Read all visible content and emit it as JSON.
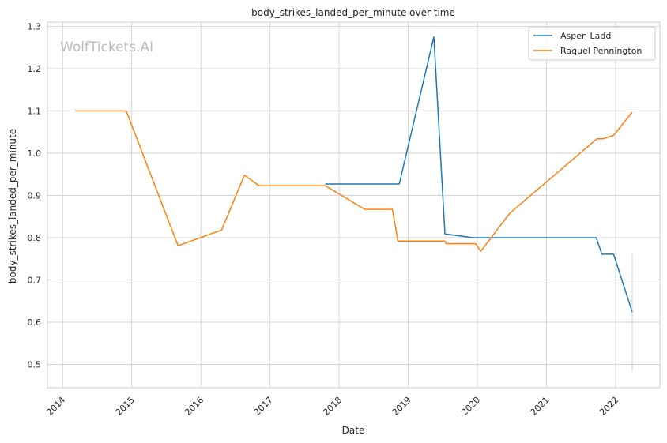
{
  "watermark": "WolfTickets.AI",
  "chart_data": {
    "type": "line",
    "title": "body_strikes_landed_per_minute over time",
    "xlabel": "Date",
    "ylabel": "body_strikes_landed_per_minute",
    "xlim": [
      2013.78,
      2022.64
    ],
    "ylim": [
      0.445,
      1.31
    ],
    "x_ticks": [
      2014,
      2015,
      2016,
      2017,
      2018,
      2019,
      2020,
      2021,
      2022
    ],
    "x_tick_labels": [
      "2014",
      "2015",
      "2016",
      "2017",
      "2018",
      "2019",
      "2020",
      "2021",
      "2022"
    ],
    "y_ticks": [
      0.5,
      0.6,
      0.7,
      0.8,
      0.9,
      1.0,
      1.1,
      1.2,
      1.3
    ],
    "y_tick_labels": [
      "0.5",
      "0.6",
      "0.7",
      "0.8",
      "0.9",
      "1.0",
      "1.1",
      "1.2",
      "1.3"
    ],
    "grid": true,
    "legend_position": "top-right",
    "series": [
      {
        "name": "Aspen Ladd",
        "color": "#1f77b4",
        "points": [
          [
            2017.8,
            0.927
          ],
          [
            2018.87,
            0.927
          ],
          [
            2019.37,
            1.275
          ],
          [
            2019.53,
            0.809
          ],
          [
            2019.93,
            0.8
          ],
          [
            2021.72,
            0.8
          ],
          [
            2021.8,
            0.761
          ],
          [
            2021.97,
            0.761
          ],
          [
            2022.24,
            0.624
          ]
        ]
      },
      {
        "name": "Raquel Pennington",
        "color": "#ff7f0e",
        "points": [
          [
            2014.18,
            1.1
          ],
          [
            2014.92,
            1.1
          ],
          [
            2015.67,
            0.781
          ],
          [
            2016.3,
            0.818
          ],
          [
            2016.63,
            0.948
          ],
          [
            2016.84,
            0.923
          ],
          [
            2017.8,
            0.923
          ],
          [
            2018.37,
            0.867
          ],
          [
            2018.77,
            0.867
          ],
          [
            2018.85,
            0.792
          ],
          [
            2019.53,
            0.792
          ],
          [
            2019.55,
            0.786
          ],
          [
            2019.97,
            0.786
          ],
          [
            2020.05,
            0.768
          ],
          [
            2020.47,
            0.858
          ],
          [
            2021.73,
            1.034
          ],
          [
            2021.82,
            1.034
          ],
          [
            2021.97,
            1.042
          ],
          [
            2022.24,
            1.097
          ]
        ]
      }
    ],
    "error_band": {
      "color": "#1f77b4",
      "x": 2022.24,
      "y_low": 0.485,
      "y_high": 0.762
    }
  }
}
